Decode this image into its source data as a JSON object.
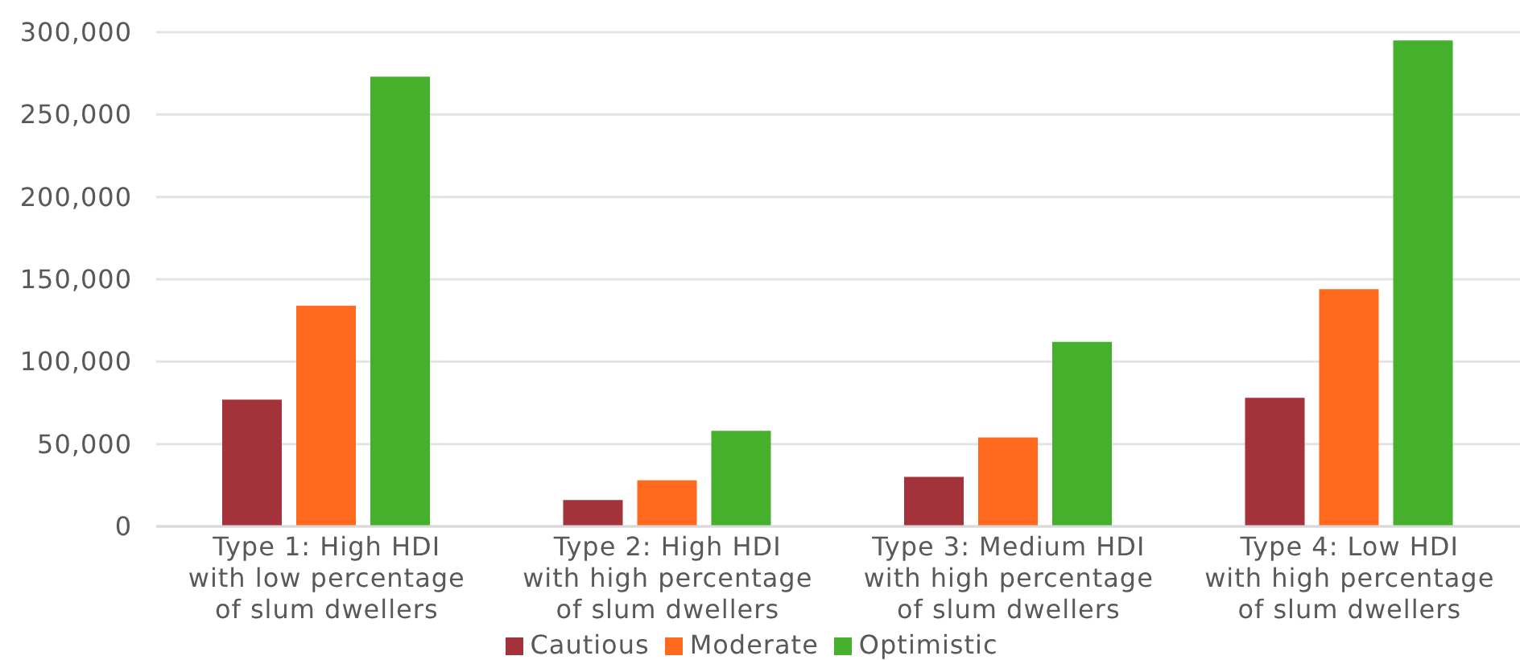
{
  "chart_data": {
    "type": "bar",
    "categories": [
      "Type 1: High HDI\nwith low percentage\nof slum dwellers",
      "Type 2: High HDI\nwith high percentage\nof slum dwellers",
      "Type 3: Medium HDI\nwith high percentage\nof slum dwellers",
      "Type 4: Low HDI\nwith high percentage\nof slum dwellers"
    ],
    "series": [
      {
        "name": "Cautious",
        "color": "#a4323a",
        "values": [
          77000,
          16000,
          30000,
          78000
        ]
      },
      {
        "name": "Moderate",
        "color": "#ff6a1f",
        "values": [
          134000,
          28000,
          54000,
          144000
        ]
      },
      {
        "name": "Optimistic",
        "color": "#45b02b",
        "values": [
          273000,
          58000,
          112000,
          295000
        ]
      }
    ],
    "ylim": [
      0,
      300000
    ],
    "yticks": [
      {
        "value": 0,
        "label": "0"
      },
      {
        "value": 50000,
        "label": "50,000"
      },
      {
        "value": 100000,
        "label": "100,000"
      },
      {
        "value": 150000,
        "label": "150,000"
      },
      {
        "value": 200000,
        "label": "200,000"
      },
      {
        "value": 250000,
        "label": "250,000"
      },
      {
        "value": 300000,
        "label": "300,000"
      }
    ],
    "grid": "y",
    "legend": "bottom"
  }
}
